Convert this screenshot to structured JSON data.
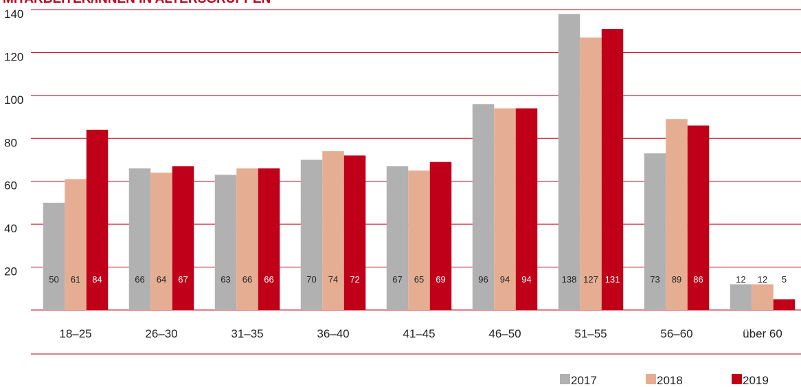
{
  "chart_data": {
    "type": "bar",
    "title": "MITARBEITER/INNEN IN ALTERSGRUPPEN",
    "categories": [
      "18–25",
      "26–30",
      "31–35",
      "36–40",
      "41–45",
      "46–50",
      "51–55",
      "56–60",
      "über 60"
    ],
    "series": [
      {
        "name": "2017",
        "color": "#b1b1b1",
        "values": [
          50,
          66,
          63,
          70,
          67,
          96,
          138,
          73,
          12
        ]
      },
      {
        "name": "2018",
        "color": "#e5ae93",
        "values": [
          61,
          64,
          66,
          74,
          65,
          94,
          127,
          89,
          12
        ]
      },
      {
        "name": "2019",
        "color": "#c00018",
        "values": [
          84,
          67,
          66,
          72,
          69,
          94,
          131,
          86,
          5
        ]
      }
    ],
    "ylim": [
      0,
      140
    ],
    "yticks": [
      20,
      40,
      60,
      80,
      100,
      120,
      140
    ],
    "grid": true
  }
}
